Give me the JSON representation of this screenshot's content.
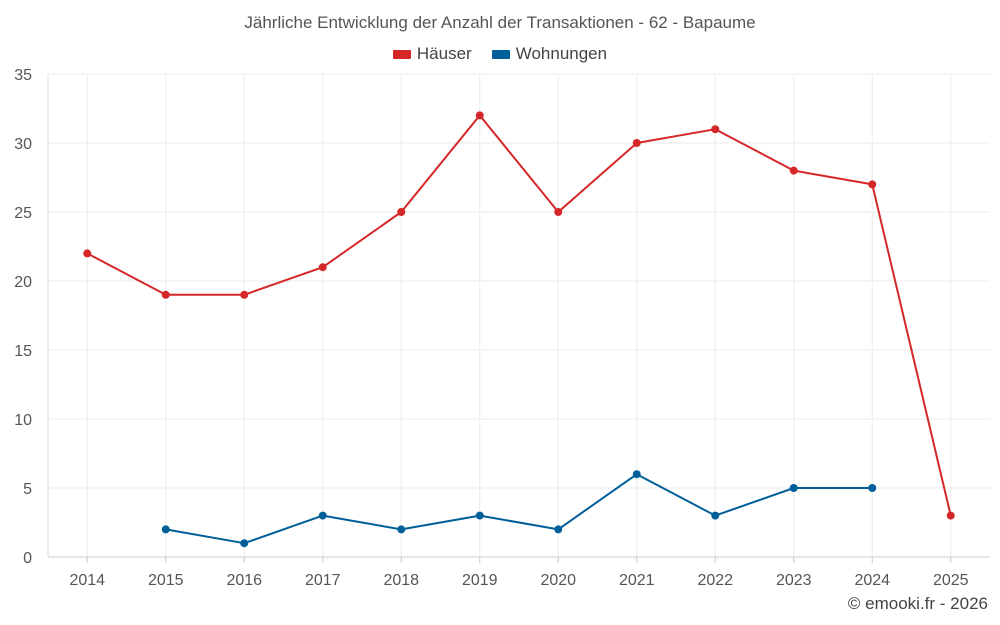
{
  "chart_data": {
    "type": "line",
    "title": "Jährliche Entwicklung der Anzahl der Transaktionen - 62 - Bapaume",
    "categories": [
      "2014",
      "2015",
      "2016",
      "2017",
      "2018",
      "2019",
      "2020",
      "2021",
      "2022",
      "2023",
      "2024",
      "2025"
    ],
    "series": [
      {
        "name": "Häuser",
        "color": "#d62728",
        "values": [
          22,
          19,
          19,
          21,
          25,
          32,
          25,
          30,
          31,
          28,
          27,
          3
        ]
      },
      {
        "name": "Wohnungen",
        "color": "#005f99",
        "values": [
          null,
          2,
          1,
          3,
          2,
          3,
          2,
          6,
          3,
          5,
          5,
          null
        ]
      }
    ],
    "ylim": [
      0,
      35
    ],
    "yticks": [
      0,
      5,
      10,
      15,
      20,
      25,
      30,
      35
    ],
    "xlabel": "",
    "ylabel": "",
    "grid": true,
    "legend": "top-center"
  },
  "footer": {
    "credit": "© emooki.fr - 2026"
  }
}
